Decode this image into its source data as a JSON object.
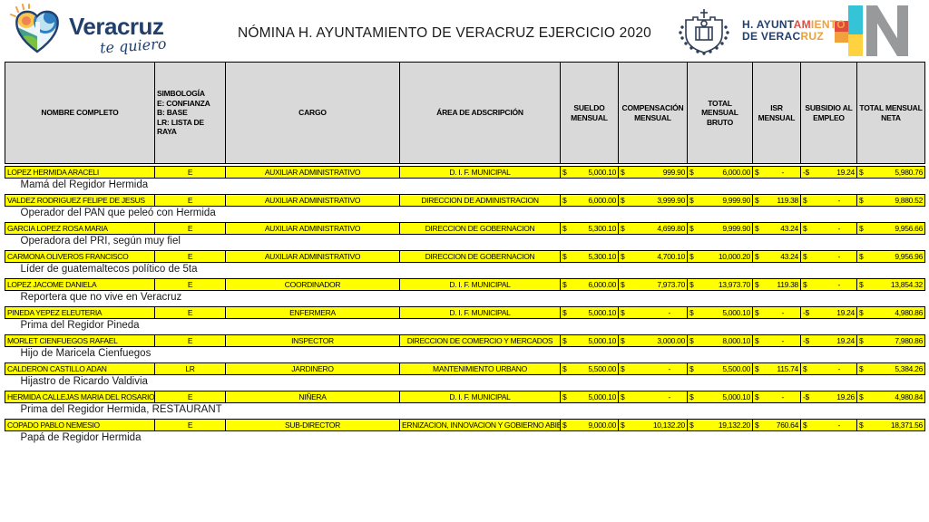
{
  "header": {
    "title": "NÓMINA H. AYUNTAMIENTO DE VERACRUZ EJERCICIO 2020",
    "brand": {
      "name": "Veracruz",
      "tagline": "te quiero"
    },
    "right": {
      "l1a": "H. AYUNT",
      "l1b": "AM",
      "l1c": "IENTO",
      "l2a": "DE VERAC",
      "l2b": "RUZ"
    }
  },
  "colors": {
    "row_highlight": "#ffff00",
    "header_bg": "#d9d9d9",
    "border": "#000000",
    "brand_navy": "#22406e",
    "accent_red": "#e14b3f",
    "accent_orange": "#f2a23c",
    "accent_cyan": "#35c4d7",
    "accent_yellow": "#ffd23f",
    "accent_gray": "#97999b"
  },
  "table": {
    "columns": [
      {
        "key": "nombre",
        "label": "NOMBRE COMPLETO"
      },
      {
        "key": "simbologia",
        "label": "SIMBOLOGÍA\nE: CONFIANZA\nB: BASE\nLR: LISTA DE\nRAYA"
      },
      {
        "key": "cargo",
        "label": "CARGO"
      },
      {
        "key": "area",
        "label": "ÁREA DE ADSCRIPCIÓN"
      },
      {
        "key": "sueldo",
        "label": "SUELDO\nMENSUAL"
      },
      {
        "key": "compensacion",
        "label": "COMPENSACIÓN\nMENSUAL"
      },
      {
        "key": "bruto",
        "label": "TOTAL\nMENSUAL\nBRUTO"
      },
      {
        "key": "isr",
        "label": "ISR\nMENSUAL"
      },
      {
        "key": "subsidio",
        "label": "SUBSIDIO AL\nEMPLEO"
      },
      {
        "key": "neta",
        "label": "TOTAL MENSUAL\nNETA"
      }
    ],
    "rows": [
      {
        "nombre": "LOPEZ HERMIDA ARACELI",
        "simbologia": "E",
        "cargo": "AUXILIAR ADMINISTRATIVO",
        "area": "D. I. F. MUNICIPAL",
        "sueldo": {
          "sign": "$",
          "value": "5,000.10"
        },
        "compensacion": {
          "sign": "$",
          "value": "999.90"
        },
        "bruto": {
          "sign": "$",
          "value": "6,000.00"
        },
        "isr": {
          "sign": "$",
          "value": "-"
        },
        "subsidio": {
          "sign": "-$",
          "value": "19.24"
        },
        "neta": {
          "sign": "$",
          "value": "5,980.76"
        },
        "nota": "Mamá del Regidor Hermida"
      },
      {
        "nombre": "VALDEZ RODRIGUEZ FELIPE DE JESUS",
        "simbologia": "E",
        "cargo": "AUXILIAR ADMINISTRATIVO",
        "area": "DIRECCION DE ADMINISTRACION",
        "sueldo": {
          "sign": "$",
          "value": "6,000.00"
        },
        "compensacion": {
          "sign": "$",
          "value": "3,999.90"
        },
        "bruto": {
          "sign": "$",
          "value": "9,999.90"
        },
        "isr": {
          "sign": "$",
          "value": "119.38"
        },
        "subsidio": {
          "sign": "$",
          "value": "-"
        },
        "neta": {
          "sign": "$",
          "value": "9,880.52"
        },
        "nota": "Operador del PAN que peleó con Hermida"
      },
      {
        "nombre": "GARCIA LOPEZ ROSA MARIA",
        "simbologia": "E",
        "cargo": "AUXILIAR ADMINISTRATIVO",
        "area": "DIRECCION DE GOBERNACION",
        "sueldo": {
          "sign": "$",
          "value": "5,300.10"
        },
        "compensacion": {
          "sign": "$",
          "value": "4,699.80"
        },
        "bruto": {
          "sign": "$",
          "value": "9,999.90"
        },
        "isr": {
          "sign": "$",
          "value": "43.24"
        },
        "subsidio": {
          "sign": "$",
          "value": "-"
        },
        "neta": {
          "sign": "$",
          "value": "9,956.66"
        },
        "nota": "Operadora del PRI, según muy fiel"
      },
      {
        "nombre": "CARMONA OLIVEROS FRANCISCO",
        "simbologia": "E",
        "cargo": "AUXILIAR ADMINISTRATIVO",
        "area": "DIRECCION DE GOBERNACION",
        "sueldo": {
          "sign": "$",
          "value": "5,300.10"
        },
        "compensacion": {
          "sign": "$",
          "value": "4,700.10"
        },
        "bruto": {
          "sign": "$",
          "value": "10,000.20"
        },
        "isr": {
          "sign": "$",
          "value": "43.24"
        },
        "subsidio": {
          "sign": "$",
          "value": "-"
        },
        "neta": {
          "sign": "$",
          "value": "9,956.96"
        },
        "nota": "Líder de guatemaltecos político de 5ta"
      },
      {
        "nombre": "LOPEZ JACOME DANIELA",
        "simbologia": "E",
        "cargo": "COORDINADOR",
        "area": "D. I. F. MUNICIPAL",
        "sueldo": {
          "sign": "$",
          "value": "6,000.00"
        },
        "compensacion": {
          "sign": "$",
          "value": "7,973.70"
        },
        "bruto": {
          "sign": "$",
          "value": "13,973.70"
        },
        "isr": {
          "sign": "$",
          "value": "119.38"
        },
        "subsidio": {
          "sign": "$",
          "value": "-"
        },
        "neta": {
          "sign": "$",
          "value": "13,854.32"
        },
        "nota": "Reportera que no vive en Veracruz"
      },
      {
        "nombre": "PINEDA YEPEZ ELEUTERIA",
        "simbologia": "E",
        "cargo": "ENFERMERA",
        "area": "D. I. F. MUNICIPAL",
        "sueldo": {
          "sign": "$",
          "value": "5,000.10"
        },
        "compensacion": {
          "sign": "$",
          "value": "-"
        },
        "bruto": {
          "sign": "$",
          "value": "5,000.10"
        },
        "isr": {
          "sign": "$",
          "value": "-"
        },
        "subsidio": {
          "sign": "-$",
          "value": "19.24"
        },
        "neta": {
          "sign": "$",
          "value": "4,980.86"
        },
        "nota": "Prima del Regidor Pineda"
      },
      {
        "nombre": "MORLET CIENFUEGOS RAFAEL",
        "simbologia": "E",
        "cargo": "INSPECTOR",
        "area": "DIRECCION DE COMERCIO Y MERCADOS",
        "sueldo": {
          "sign": "$",
          "value": "5,000.10"
        },
        "compensacion": {
          "sign": "$",
          "value": "3,000.00"
        },
        "bruto": {
          "sign": "$",
          "value": "8,000.10"
        },
        "isr": {
          "sign": "$",
          "value": "-"
        },
        "subsidio": {
          "sign": "-$",
          "value": "19.24"
        },
        "neta": {
          "sign": "$",
          "value": "7,980.86"
        },
        "nota": "Hijo de Maricela Cienfuegos"
      },
      {
        "nombre": "CALDERON CASTILLO ADAN",
        "simbologia": "LR",
        "cargo": "JARDINERO",
        "area": "MANTENIMIENTO URBANO",
        "sueldo": {
          "sign": "$",
          "value": "5,500.00"
        },
        "compensacion": {
          "sign": "$",
          "value": "-"
        },
        "bruto": {
          "sign": "$",
          "value": "5,500.00"
        },
        "isr": {
          "sign": "$",
          "value": "115.74"
        },
        "subsidio": {
          "sign": "$",
          "value": "-"
        },
        "neta": {
          "sign": "$",
          "value": "5,384.26"
        },
        "nota": "Hijastro de Ricardo Valdivia"
      },
      {
        "nombre": "HERMIDA CALLEJAS MARIA DEL ROSARIO",
        "simbologia": "E",
        "cargo": "NIÑERA",
        "area": "D. I. F. MUNICIPAL",
        "sueldo": {
          "sign": "$",
          "value": "5,000.10"
        },
        "compensacion": {
          "sign": "$",
          "value": "-"
        },
        "bruto": {
          "sign": "$",
          "value": "5,000.10"
        },
        "isr": {
          "sign": "$",
          "value": "-"
        },
        "subsidio": {
          "sign": "-$",
          "value": "19.26"
        },
        "neta": {
          "sign": "$",
          "value": "4,980.84"
        },
        "nota": "Prima del Regidor Hermida, RESTAURANT"
      },
      {
        "nombre": "COPADO PABLO NEMESIO",
        "simbologia": "E",
        "cargo": "SUB-DIRECTOR",
        "area": "ERNIZACION, INNOVACION Y GOBIERNO ABIE",
        "sueldo": {
          "sign": "$",
          "value": "9,000.00"
        },
        "compensacion": {
          "sign": "$",
          "value": "10,132.20"
        },
        "bruto": {
          "sign": "$",
          "value": "19,132.20"
        },
        "isr": {
          "sign": "$",
          "value": "760.64"
        },
        "subsidio": {
          "sign": "$",
          "value": "-"
        },
        "neta": {
          "sign": "$",
          "value": "18,371.56"
        },
        "nota": "Papá de Regidor Hermida"
      }
    ]
  }
}
